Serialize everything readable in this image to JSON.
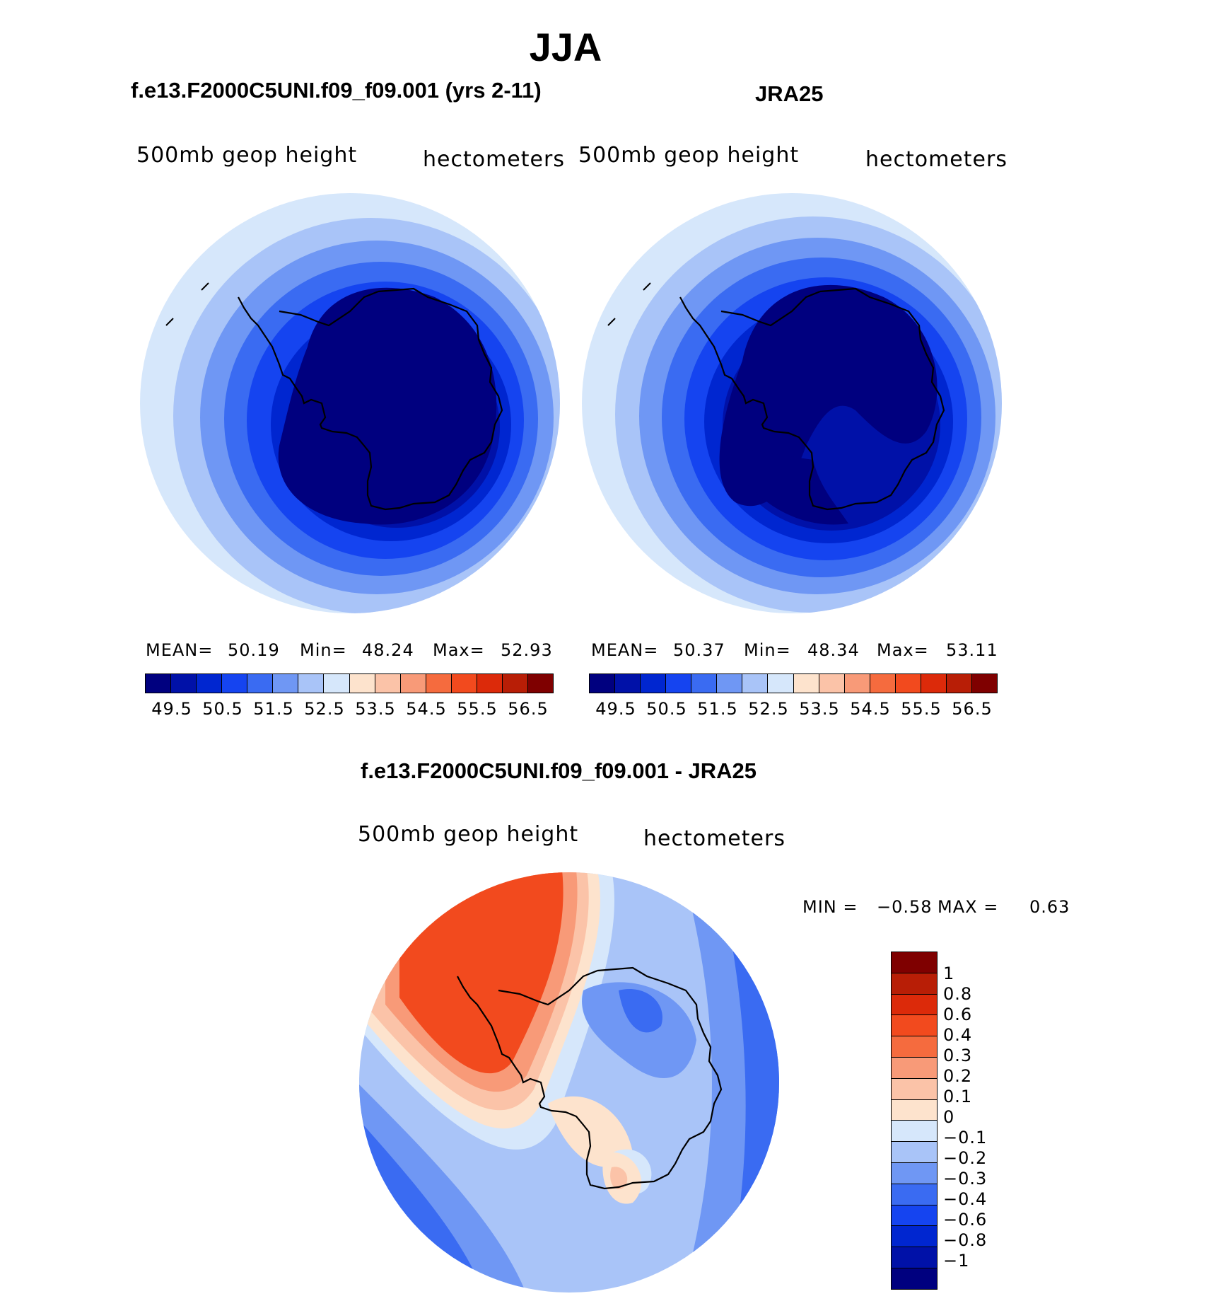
{
  "title": "JJA",
  "panels": [
    {
      "title": "f.e13.F2000C5UNI.f09_f09.001 (yrs 2-11)",
      "variable": "500mb geop height",
      "units": "hectometers",
      "stats": {
        "mean_label": "MEAN=",
        "mean": "50.19",
        "min_label": "Min=",
        "min": "48.24",
        "max_label": "Max=",
        "max": "52.93"
      }
    },
    {
      "title": "JRA25",
      "variable": "500mb geop height",
      "units": "hectometers",
      "stats": {
        "mean_label": "MEAN=",
        "mean": "50.37",
        "min_label": "Min=",
        "min": "48.34",
        "max_label": "Max=",
        "max": "53.11"
      }
    },
    {
      "title": "f.e13.F2000C5UNI.f09_f09.001 - JRA25",
      "variable": "500mb geop height",
      "units": "hectometers",
      "stats": {
        "min_label": "MIN =",
        "min": "−0.58",
        "max_label": "MAX =",
        "max": "0.63"
      }
    }
  ],
  "colorbar_abs": {
    "ticks": [
      "49.5",
      "50.5",
      "51.5",
      "52.5",
      "53.5",
      "54.5",
      "55.5",
      "56.5"
    ],
    "colors": [
      "#00007f",
      "#0011a8",
      "#0026d0",
      "#1544f0",
      "#3a6bf2",
      "#6f97f4",
      "#a9c4f8",
      "#d6e7fb",
      "#fde3cd",
      "#fbc3a8",
      "#f89a78",
      "#f56b3e",
      "#f24a1e",
      "#dc2a0a",
      "#b81e06",
      "#7f0000"
    ]
  },
  "colorbar_diff": {
    "labels": [
      "1",
      "0.8",
      "0.6",
      "0.4",
      "0.3",
      "0.2",
      "0.1",
      "0",
      "−0.1",
      "−0.2",
      "−0.3",
      "−0.4",
      "−0.6",
      "−0.8",
      "−1"
    ],
    "colors": [
      "#7f0000",
      "#b81e06",
      "#dc2a0a",
      "#f24a1e",
      "#f56b3e",
      "#f89a78",
      "#fbc3a8",
      "#fde3cd",
      "#d6e7fb",
      "#a9c4f8",
      "#6f97f4",
      "#3a6bf2",
      "#1544f0",
      "#0026d0",
      "#0011a8",
      "#00007f"
    ]
  }
}
